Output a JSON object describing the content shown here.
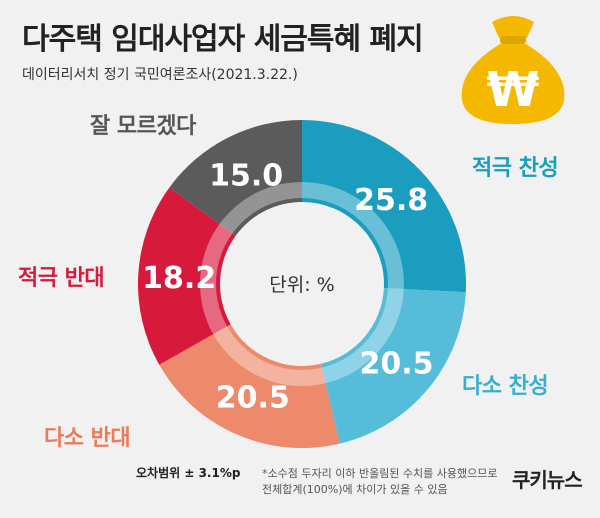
{
  "header": {
    "title": "다주택 임대사업자 세금특혜 폐지",
    "subtitle": "데이터리서치 정기 국민여론조사(2021.3.22.)"
  },
  "money_bag": {
    "icon": "money-bag-won-icon",
    "symbol": "₩",
    "color": "#f5b800"
  },
  "chart_data": {
    "type": "pie",
    "variant": "donut",
    "center_label": "단위: %",
    "slices": [
      {
        "label": "적극 찬성",
        "value": 25.8,
        "value_label": "25.8",
        "color": "#1a9dbf",
        "label_color": "#1a9dbf"
      },
      {
        "label": "다소 찬성",
        "value": 20.5,
        "value_label": "20.5",
        "color": "#55bcd9",
        "label_color": "#3aaed0"
      },
      {
        "label": "다소 반대",
        "value": 20.5,
        "value_label": "20.5",
        "color": "#ee8a6c",
        "label_color": "#ec7b5a"
      },
      {
        "label": "적극 반대",
        "value": 18.2,
        "value_label": "18.2",
        "color": "#d7193c",
        "label_color": "#d7193c"
      },
      {
        "label": "잘 모르겠다",
        "value": 15.0,
        "value_label": "15.0",
        "color": "#5b5b5b",
        "label_color": "#555555"
      }
    ]
  },
  "footer": {
    "margin_of_error": "오차범위 ± 3.1%p",
    "note_line1": "*소수점 두자리 이하 반올림된 수치를 사용했으므로",
    "note_line2": "전체합계(100%)에 차이가 있을 수 있음",
    "brand": "쿠키뉴스"
  }
}
